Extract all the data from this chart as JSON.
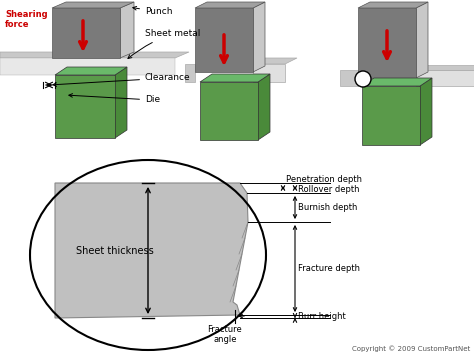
{
  "bg_color": "#ffffff",
  "dark_gray": "#7a7a7a",
  "mid_gray": "#a0a0a0",
  "light_gray": "#c8c8c8",
  "sheet_gray": "#b8b8b8",
  "green_die": "#5a9a4a",
  "green_die_dark": "#4a8a3a",
  "red_arrow": "#cc0000",
  "red_label": "#cc0000",
  "copyright": "Copyright © 2009 CustomPartNet",
  "labels": {
    "shearing_force": "Shearing\nforce",
    "punch": "Punch",
    "sheet_metal": "Sheet metal",
    "clearance": "Clearance",
    "die": "Die",
    "penetration_depth": "Penetration depth",
    "rollover_depth": "Rollover depth",
    "burnish_depth": "Burnish depth",
    "fracture_depth": "Fracture depth",
    "burr_height": "Burr height",
    "fracture_angle": "Fracture\nangle",
    "sheet_thickness": "Sheet thickness"
  },
  "fig_w": 4.74,
  "fig_h": 3.55,
  "dpi": 100
}
